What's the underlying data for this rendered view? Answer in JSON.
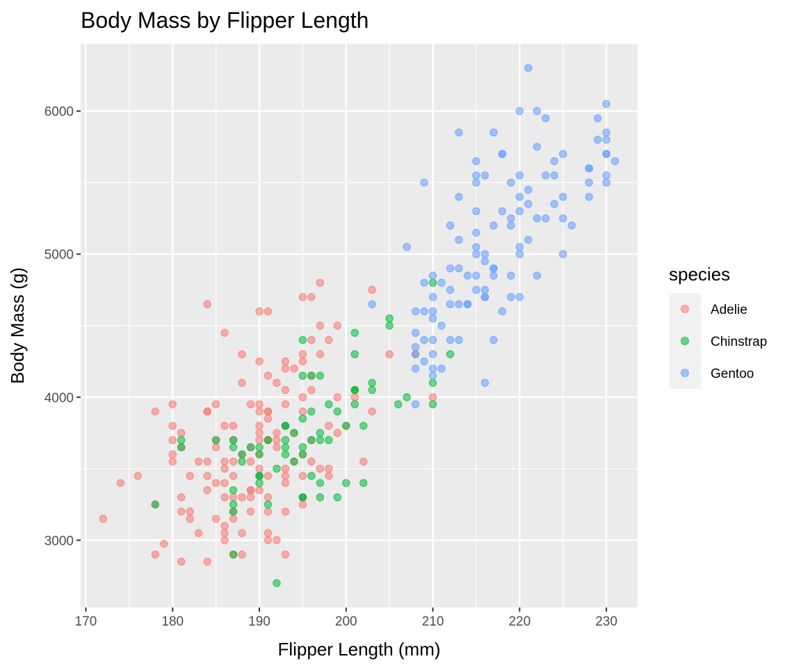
{
  "chart_data": {
    "type": "scatter",
    "title": "Body Mass by Flipper Length",
    "xlabel": "Flipper Length (mm)",
    "ylabel": "Body Mass (g)",
    "xlim": [
      169.4,
      233.6
    ],
    "ylim": [
      2530,
      6470
    ],
    "x_ticks": [
      170,
      180,
      190,
      200,
      210,
      220,
      230
    ],
    "y_ticks": [
      3000,
      4000,
      5000,
      6000
    ],
    "x_tick_labels": [
      "170",
      "180",
      "190",
      "200",
      "210",
      "220",
      "230"
    ],
    "y_tick_labels": [
      "3000",
      "4000",
      "5000",
      "6000"
    ],
    "grid": true,
    "legend": {
      "title": "species",
      "position": "right"
    },
    "series": [
      {
        "name": "Adelie",
        "color": "#F8766D",
        "points": [
          [
            172,
            3150
          ],
          [
            174,
            3400
          ],
          [
            176,
            3450
          ],
          [
            178,
            3250
          ],
          [
            178,
            3900
          ],
          [
            178,
            2900
          ],
          [
            179,
            2975
          ],
          [
            180,
            3950
          ],
          [
            180,
            3800
          ],
          [
            180,
            3700
          ],
          [
            180,
            3550
          ],
          [
            180,
            3600
          ],
          [
            181,
            3650
          ],
          [
            181,
            3300
          ],
          [
            181,
            3200
          ],
          [
            181,
            3750
          ],
          [
            181,
            2850
          ],
          [
            182,
            3150
          ],
          [
            182,
            3200
          ],
          [
            182,
            3450
          ],
          [
            183,
            3550
          ],
          [
            183,
            3050
          ],
          [
            184,
            3550
          ],
          [
            184,
            3450
          ],
          [
            184,
            3350
          ],
          [
            184,
            3900
          ],
          [
            184,
            3900
          ],
          [
            184,
            2850
          ],
          [
            184,
            4650
          ],
          [
            185,
            3950
          ],
          [
            185,
            3400
          ],
          [
            185,
            3150
          ],
          [
            185,
            3650
          ],
          [
            185,
            3700
          ],
          [
            186,
            3400
          ],
          [
            186,
            3000
          ],
          [
            186,
            3550
          ],
          [
            186,
            3500
          ],
          [
            186,
            3100
          ],
          [
            186,
            3050
          ],
          [
            186,
            3800
          ],
          [
            186,
            3300
          ],
          [
            186,
            4450
          ],
          [
            187,
            3450
          ],
          [
            187,
            3550
          ],
          [
            187,
            3700
          ],
          [
            187,
            3300
          ],
          [
            187,
            2900
          ],
          [
            187,
            3800
          ],
          [
            187,
            3200
          ],
          [
            187,
            3150
          ],
          [
            188,
            3300
          ],
          [
            188,
            2900
          ],
          [
            188,
            3050
          ],
          [
            188,
            4300
          ],
          [
            188,
            4100
          ],
          [
            188,
            3600
          ],
          [
            189,
            3950
          ],
          [
            189,
            3300
          ],
          [
            189,
            3350
          ],
          [
            189,
            3200
          ],
          [
            189,
            3550
          ],
          [
            189,
            3650
          ],
          [
            189,
            3350
          ],
          [
            190,
            3500
          ],
          [
            190,
            3800
          ],
          [
            190,
            3700
          ],
          [
            190,
            3600
          ],
          [
            190,
            3450
          ],
          [
            190,
            3350
          ],
          [
            190,
            3900
          ],
          [
            190,
            4600
          ],
          [
            190,
            4250
          ],
          [
            190,
            3750
          ],
          [
            190,
            3950
          ],
          [
            191,
            3050
          ],
          [
            191,
            3450
          ],
          [
            191,
            3300
          ],
          [
            191,
            3900
          ],
          [
            191,
            3200
          ],
          [
            191,
            3700
          ],
          [
            191,
            3850
          ],
          [
            191,
            3000
          ],
          [
            191,
            3900
          ],
          [
            191,
            3700
          ],
          [
            191,
            4150
          ],
          [
            191,
            4600
          ],
          [
            192,
            3700
          ],
          [
            192,
            4100
          ],
          [
            192,
            3650
          ],
          [
            192,
            3750
          ],
          [
            192,
            3000
          ],
          [
            193,
            3950
          ],
          [
            193,
            3200
          ],
          [
            193,
            4050
          ],
          [
            193,
            3450
          ],
          [
            193,
            3800
          ],
          [
            193,
            4250
          ],
          [
            193,
            3400
          ],
          [
            193,
            3500
          ],
          [
            193,
            4200
          ],
          [
            193,
            2900
          ],
          [
            194,
            3550
          ],
          [
            194,
            3750
          ],
          [
            194,
            4200
          ],
          [
            195,
            3600
          ],
          [
            195,
            4000
          ],
          [
            195,
            4250
          ],
          [
            195,
            3450
          ],
          [
            195,
            3900
          ],
          [
            195,
            4300
          ],
          [
            195,
            3250
          ],
          [
            195,
            4700
          ],
          [
            195,
            3300
          ],
          [
            196,
            4400
          ],
          [
            196,
            3700
          ],
          [
            196,
            3550
          ],
          [
            196,
            4050
          ],
          [
            196,
            4700
          ],
          [
            196,
            4150
          ],
          [
            197,
            4300
          ],
          [
            197,
            3500
          ],
          [
            197,
            4500
          ],
          [
            197,
            4800
          ],
          [
            198,
            3450
          ],
          [
            198,
            4400
          ],
          [
            198,
            3800
          ],
          [
            198,
            3500
          ],
          [
            199,
            3750
          ],
          [
            199,
            4500
          ],
          [
            199,
            4000
          ],
          [
            200,
            3800
          ],
          [
            201,
            4050
          ],
          [
            201,
            4000
          ],
          [
            202,
            3550
          ],
          [
            203,
            3900
          ],
          [
            203,
            4750
          ],
          [
            205,
            4300
          ],
          [
            208,
            4300
          ],
          [
            210,
            4000
          ]
        ]
      },
      {
        "name": "Chinstrap",
        "color": "#00BA38",
        "points": [
          [
            178,
            3250
          ],
          [
            181,
            3650
          ],
          [
            181,
            3700
          ],
          [
            185,
            3700
          ],
          [
            187,
            3350
          ],
          [
            187,
            3250
          ],
          [
            187,
            3200
          ],
          [
            187,
            3650
          ],
          [
            187,
            3700
          ],
          [
            187,
            2900
          ],
          [
            188,
            3600
          ],
          [
            188,
            3550
          ],
          [
            189,
            3650
          ],
          [
            190,
            3450
          ],
          [
            190,
            3650
          ],
          [
            190,
            3400
          ],
          [
            190,
            3450
          ],
          [
            190,
            3600
          ],
          [
            191,
            3250
          ],
          [
            191,
            3700
          ],
          [
            192,
            3500
          ],
          [
            192,
            2700
          ],
          [
            193,
            3700
          ],
          [
            193,
            3800
          ],
          [
            193,
            3650
          ],
          [
            193,
            3600
          ],
          [
            193,
            3800
          ],
          [
            194,
            3750
          ],
          [
            194,
            3550
          ],
          [
            195,
            3300
          ],
          [
            195,
            4400
          ],
          [
            195,
            3850
          ],
          [
            195,
            3600
          ],
          [
            195,
            4150
          ],
          [
            195,
            3300
          ],
          [
            195,
            3650
          ],
          [
            196,
            3900
          ],
          [
            196,
            3450
          ],
          [
            196,
            4150
          ],
          [
            196,
            3700
          ],
          [
            197,
            3700
          ],
          [
            197,
            3400
          ],
          [
            197,
            3750
          ],
          [
            197,
            3300
          ],
          [
            197,
            4150
          ],
          [
            198,
            3700
          ],
          [
            198,
            3950
          ],
          [
            199,
            3300
          ],
          [
            199,
            3900
          ],
          [
            200,
            3800
          ],
          [
            200,
            3400
          ],
          [
            201,
            4050
          ],
          [
            201,
            4450
          ],
          [
            201,
            4300
          ],
          [
            201,
            3950
          ],
          [
            201,
            4050
          ],
          [
            202,
            3800
          ],
          [
            202,
            3400
          ],
          [
            203,
            4050
          ],
          [
            203,
            4100
          ],
          [
            205,
            4550
          ],
          [
            205,
            4500
          ],
          [
            206,
            3950
          ],
          [
            207,
            4000
          ],
          [
            210,
            4100
          ],
          [
            210,
            4800
          ],
          [
            210,
            3950
          ],
          [
            212,
            4300
          ]
        ]
      },
      {
        "name": "Gentoo",
        "color": "#619CFF",
        "points": [
          [
            203,
            4650
          ],
          [
            207,
            5050
          ],
          [
            208,
            4450
          ],
          [
            208,
            4600
          ],
          [
            208,
            4350
          ],
          [
            208,
            3950
          ],
          [
            208,
            4300
          ],
          [
            208,
            4200
          ],
          [
            209,
            4600
          ],
          [
            209,
            4800
          ],
          [
            209,
            4400
          ],
          [
            209,
            5500
          ],
          [
            209,
            4250
          ],
          [
            210,
            4700
          ],
          [
            210,
            4600
          ],
          [
            210,
            4550
          ],
          [
            210,
            4200
          ],
          [
            210,
            4150
          ],
          [
            210,
            4400
          ],
          [
            210,
            4300
          ],
          [
            210,
            4850
          ],
          [
            211,
            4200
          ],
          [
            211,
            4800
          ],
          [
            211,
            4500
          ],
          [
            212,
            4750
          ],
          [
            212,
            5200
          ],
          [
            212,
            4650
          ],
          [
            212,
            4900
          ],
          [
            212,
            4400
          ],
          [
            213,
            5400
          ],
          [
            213,
            4650
          ],
          [
            213,
            5850
          ],
          [
            213,
            4900
          ],
          [
            213,
            5100
          ],
          [
            213,
            4400
          ],
          [
            214,
            4850
          ],
          [
            214,
            4650
          ],
          [
            214,
            4650
          ],
          [
            215,
            5000
          ],
          [
            215,
            5550
          ],
          [
            215,
            5300
          ],
          [
            215,
            5650
          ],
          [
            215,
            4750
          ],
          [
            215,
            5150
          ],
          [
            215,
            5500
          ],
          [
            215,
            4850
          ],
          [
            215,
            5050
          ],
          [
            216,
            5000
          ],
          [
            216,
            4100
          ],
          [
            216,
            4700
          ],
          [
            216,
            4700
          ],
          [
            216,
            5550
          ],
          [
            216,
            4950
          ],
          [
            216,
            4750
          ],
          [
            217,
            4900
          ],
          [
            217,
            5850
          ],
          [
            217,
            4900
          ],
          [
            217,
            5200
          ],
          [
            217,
            4400
          ],
          [
            217,
            4850
          ],
          [
            218,
            5700
          ],
          [
            218,
            4600
          ],
          [
            218,
            5300
          ],
          [
            218,
            5700
          ],
          [
            219,
            5200
          ],
          [
            219,
            4700
          ],
          [
            219,
            4850
          ],
          [
            219,
            5250
          ],
          [
            219,
            5500
          ],
          [
            220,
            5000
          ],
          [
            220,
            5050
          ],
          [
            220,
            5400
          ],
          [
            220,
            5550
          ],
          [
            220,
            5300
          ],
          [
            220,
            6000
          ],
          [
            220,
            4700
          ],
          [
            221,
            6300
          ],
          [
            221,
            5450
          ],
          [
            221,
            5100
          ],
          [
            221,
            5350
          ],
          [
            222,
            5250
          ],
          [
            222,
            5750
          ],
          [
            222,
            4850
          ],
          [
            222,
            6000
          ],
          [
            223,
            5250
          ],
          [
            223,
            5550
          ],
          [
            223,
            5950
          ],
          [
            224,
            5350
          ],
          [
            224,
            5650
          ],
          [
            224,
            5550
          ],
          [
            225,
            5400
          ],
          [
            225,
            5700
          ],
          [
            225,
            5250
          ],
          [
            225,
            5000
          ],
          [
            226,
            5200
          ],
          [
            228,
            5500
          ],
          [
            228,
            5600
          ],
          [
            228,
            5400
          ],
          [
            228,
            5600
          ],
          [
            229,
            5800
          ],
          [
            229,
            5950
          ],
          [
            230,
            5700
          ],
          [
            230,
            6050
          ],
          [
            230,
            5500
          ],
          [
            230,
            5550
          ],
          [
            230,
            5800
          ],
          [
            230,
            5850
          ],
          [
            230,
            5700
          ],
          [
            231,
            5650
          ]
        ]
      }
    ]
  }
}
